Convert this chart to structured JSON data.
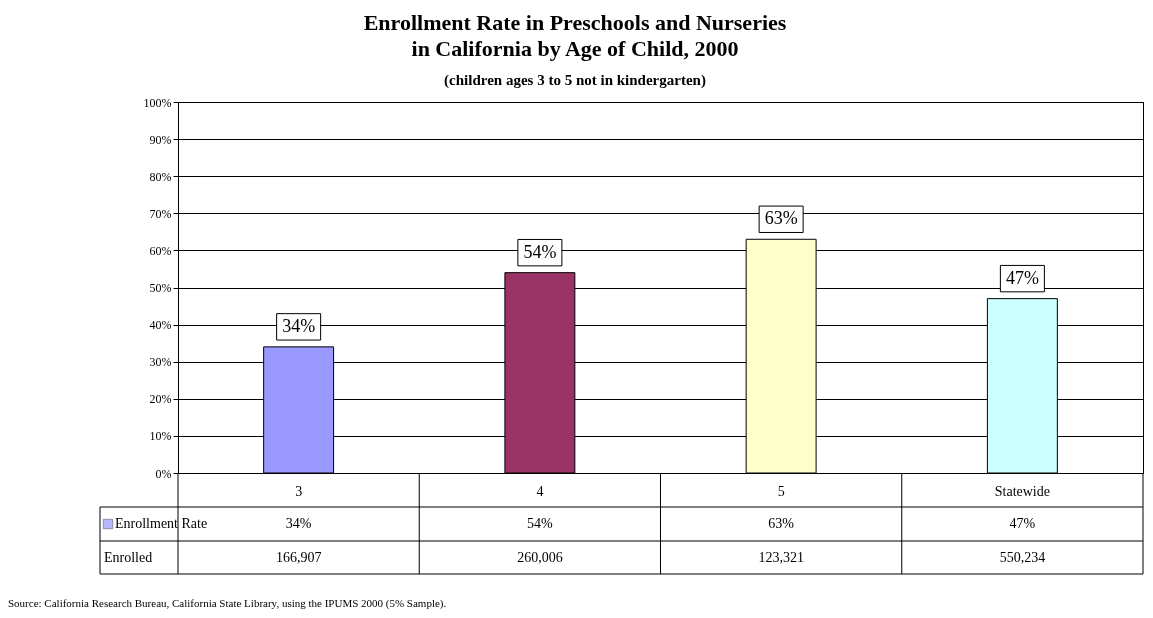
{
  "chart_data": {
    "type": "bar",
    "title": "Enrollment Rate in Preschools and Nurseries\nin California by Age of Child, 2000",
    "subtitle": "(children ages 3 to 5 not in kindergarten)",
    "categories": [
      "3",
      "4",
      "5",
      "Statewide"
    ],
    "series": [
      {
        "name": "Enrollment Rate",
        "values": [
          34,
          54,
          63,
          47
        ],
        "value_labels": [
          "34%",
          "54%",
          "63%",
          "47%"
        ]
      }
    ],
    "colors": [
      "#9999ff",
      "#993366",
      "#ffffcc",
      "#ccffff"
    ],
    "ylim": [
      0,
      100
    ],
    "yticks": [
      {
        "value": 0,
        "label": "0%"
      },
      {
        "value": 10,
        "label": "10%"
      },
      {
        "value": 20,
        "label": "20%"
      },
      {
        "value": 30,
        "label": "30%"
      },
      {
        "value": 40,
        "label": "40%"
      },
      {
        "value": 50,
        "label": "50%"
      },
      {
        "value": 60,
        "label": "60%"
      },
      {
        "value": 70,
        "label": "70%"
      },
      {
        "value": 80,
        "label": "80%"
      },
      {
        "value": 90,
        "label": "90%"
      },
      {
        "value": 100,
        "label": "100%"
      }
    ],
    "grid": "y",
    "legend": "bottom",
    "annotations": [
      "Enrolled",
      "166,907",
      "260,006",
      "123,321",
      "550,234",
      "Source:  California Research Bureau, California State Library, using the IPUMS 2000 (5% Sample)."
    ]
  }
}
